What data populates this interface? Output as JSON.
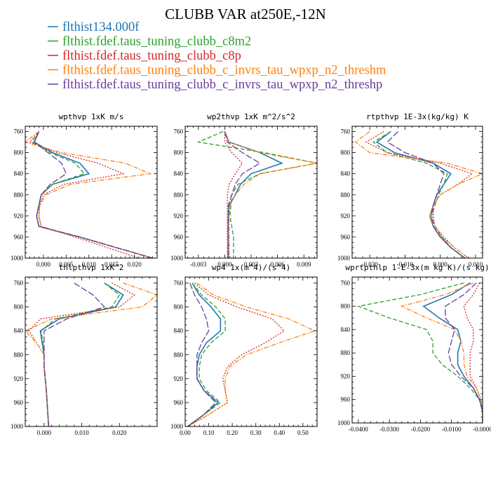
{
  "figure": {
    "title": "CLUBB VAR at250E,-12N"
  },
  "colors": {
    "blue": "#1f77b4",
    "green": "#2ca02c",
    "red": "#d62728",
    "orange": "#ff7f0e",
    "purple": "#6a3d9a"
  },
  "legend": [
    {
      "label": "flthist134.000f",
      "color": "#1f77b4",
      "dash": "solid"
    },
    {
      "label": "flthist.fdef.taus_tuning_clubb_c8m2",
      "color": "#2ca02c",
      "dash": "dashed"
    },
    {
      "label": "flthist.fdef.taus_tuning_clubb_c8p",
      "color": "#d62728",
      "dash": "dotted"
    },
    {
      "label": "flthist.fdef.taus_tuning_clubb_c_invrs_tau_wpxp_n2_threshm",
      "color": "#ff7f0e",
      "dash": "dashdot"
    },
    {
      "label": "flthist.fdef.taus_tuning_clubb_c_invrs_tau_wpxp_n2_threshp",
      "color": "#6a3d9a",
      "dash": "longdash"
    }
  ],
  "chart_data": [
    {
      "type": "line",
      "title": "wpthvp  1xK m/s",
      "xlim": [
        -0.004,
        0.025
      ],
      "ylim": [
        1000,
        750
      ],
      "xticks": [
        0.0,
        0.005,
        0.01,
        0.015,
        0.02
      ],
      "xtick_labels": [
        "0.000",
        "0.005",
        "0.010",
        "0.015",
        "0.020"
      ],
      "yticks": [
        760,
        800,
        840,
        880,
        920,
        960,
        1000
      ],
      "y": [
        760,
        780,
        800,
        820,
        840,
        860,
        880,
        900,
        920,
        940,
        960,
        980,
        1000
      ],
      "series": [
        {
          "name": "flthist134.000f",
          "values": [
            -0.001,
            -0.002,
            0.002,
            0.008,
            0.01,
            0.002,
            -0.0005,
            -0.001,
            -0.0015,
            -0.001,
            0.008,
            0.016,
            0.024
          ]
        },
        {
          "name": "flthist.fdef.taus_tuning_clubb_c8m2",
          "values": [
            -0.001,
            -0.0025,
            0.0015,
            0.007,
            0.009,
            0.002,
            -0.0005,
            -0.001,
            -0.0015,
            -0.001,
            0.008,
            0.016,
            0.024
          ]
        },
        {
          "name": "flthist.fdef.taus_tuning_clubb_c8p",
          "values": [
            -0.001,
            -0.003,
            0.003,
            0.012,
            0.0175,
            0.0045,
            0.0,
            -0.0008,
            -0.001,
            -0.0005,
            0.007,
            0.014,
            0.021
          ]
        },
        {
          "name": "flthist.fdef.taus_tuning_clubb_c_invrs_tau_wpxp_n2_threshm",
          "values": [
            -0.001,
            -0.004,
            0.004,
            0.018,
            0.0235,
            0.006,
            0.0005,
            -0.0008,
            -0.001,
            -0.0005,
            0.008,
            0.016,
            0.024
          ]
        },
        {
          "name": "flthist.fdef.taus_tuning_clubb_c_invrs_tau_wpxp_n2_threshp",
          "values": [
            -0.001,
            -0.002,
            0.001,
            0.004,
            0.005,
            0.0015,
            -0.0005,
            -0.001,
            -0.0015,
            -0.001,
            0.008,
            0.016,
            0.024
          ]
        }
      ]
    },
    {
      "type": "line",
      "title": "wp2thvp  1xK m^2/s^2",
      "xlim": [
        -0.0045,
        0.0105
      ],
      "ylim": [
        1000,
        750
      ],
      "xticks": [
        -0.003,
        0.0,
        0.003,
        0.006,
        0.009
      ],
      "xtick_labels": [
        "-0.003",
        "0.000",
        "0.003",
        "0.006",
        "0.009"
      ],
      "yticks": [
        760,
        800,
        840,
        880,
        920,
        960,
        1000
      ],
      "y": [
        760,
        780,
        800,
        820,
        840,
        860,
        880,
        900,
        920,
        940,
        960,
        980,
        1000
      ],
      "series": [
        {
          "name": "flthist134.000f",
          "values": [
            0.0,
            0.0005,
            0.004,
            0.0065,
            0.003,
            0.0018,
            0.0012,
            0.0005,
            0.0004,
            0.0004,
            0.0004,
            0.0004,
            0.0004
          ]
        },
        {
          "name": "flthist.fdef.taus_tuning_clubb_c8m2",
          "values": [
            -0.0002,
            -0.003,
            0.0045,
            0.0105,
            0.004,
            0.0015,
            0.0008,
            0.0007,
            0.0006,
            0.0008,
            0.001,
            0.001,
            0.001
          ]
        },
        {
          "name": "flthist.fdef.taus_tuning_clubb_c8p",
          "values": [
            0.0,
            0.0,
            0.0008,
            0.002,
            0.0012,
            0.0005,
            0.0003,
            0.0003,
            0.0003,
            0.0003,
            0.0003,
            0.0003,
            0.0003
          ]
        },
        {
          "name": "flthist.fdef.taus_tuning_clubb_c_invrs_tau_wpxp_n2_threshm",
          "values": [
            0.0,
            0.0005,
            0.004,
            0.0105,
            0.004,
            0.0022,
            0.0012,
            0.0006,
            0.0005,
            0.0005,
            0.0005,
            0.0005,
            0.0005
          ]
        },
        {
          "name": "flthist.fdef.taus_tuning_clubb_c_invrs_tau_wpxp_n2_threshp",
          "values": [
            0.0,
            0.0003,
            0.002,
            0.004,
            0.002,
            0.0012,
            0.0008,
            0.0004,
            0.0004,
            0.0004,
            0.0004,
            0.0004,
            0.0004
          ]
        }
      ]
    },
    {
      "type": "line",
      "title": "rtpthvp  1E-3x(kg/kg) K",
      "xlim": [
        -0.025,
        0.012
      ],
      "ylim": [
        1000,
        750
      ],
      "xticks": [
        -0.02,
        -0.01,
        0.0,
        0.01
      ],
      "xtick_labels": [
        "-0.020",
        "-0.010",
        "0.000",
        "0.010"
      ],
      "yticks": [
        760,
        800,
        840,
        880,
        920,
        960,
        1000
      ],
      "y": [
        760,
        780,
        800,
        820,
        840,
        860,
        880,
        900,
        920,
        940,
        960,
        980,
        1000
      ],
      "series": [
        {
          "name": "flthist134.000f",
          "values": [
            -0.014,
            -0.018,
            -0.013,
            -0.002,
            0.003,
            0.001,
            -0.001,
            -0.002,
            -0.003,
            -0.002,
            0.0,
            0.003,
            0.007
          ]
        },
        {
          "name": "flthist.fdef.taus_tuning_clubb_c8m2",
          "values": [
            -0.014,
            -0.019,
            -0.015,
            -0.004,
            0.002,
            0.001,
            -0.0005,
            -0.0015,
            -0.0025,
            -0.0015,
            0.0005,
            0.003,
            0.007
          ]
        },
        {
          "name": "flthist.fdef.taus_tuning_clubb_c8p",
          "values": [
            -0.016,
            -0.021,
            -0.015,
            0.0,
            0.009,
            0.005,
            0.0,
            -0.002,
            -0.002,
            -0.0015,
            0.001,
            0.004,
            0.008
          ]
        },
        {
          "name": "flthist.fdef.taus_tuning_clubb_c_invrs_tau_wpxp_n2_threshm",
          "values": [
            -0.02,
            -0.024,
            -0.02,
            0.002,
            0.012,
            0.005,
            0.0,
            -0.002,
            -0.003,
            -0.002,
            0.0005,
            0.004,
            0.008
          ]
        },
        {
          "name": "flthist.fdef.taus_tuning_clubb_c_invrs_tau_wpxp_n2_threshp",
          "values": [
            -0.012,
            -0.015,
            -0.01,
            -0.002,
            0.001,
            0.0,
            -0.001,
            -0.002,
            -0.0025,
            -0.002,
            0.0,
            0.003,
            0.007
          ]
        }
      ]
    },
    {
      "type": "line",
      "title": "thlpthvp  1xK^2",
      "xlim": [
        -0.005,
        0.03
      ],
      "ylim": [
        1000,
        750
      ],
      "xticks": [
        0.0,
        0.01,
        0.02
      ],
      "xtick_labels": [
        "0.000",
        "0.010",
        "0.020"
      ],
      "yticks": [
        760,
        800,
        840,
        880,
        920,
        960,
        1000
      ],
      "y": [
        760,
        780,
        800,
        820,
        840,
        860,
        880,
        900,
        920,
        940,
        960,
        980,
        1000
      ],
      "series": [
        {
          "name": "flthist134.000f",
          "values": [
            0.016,
            0.021,
            0.019,
            0.004,
            -0.001,
            -0.0005,
            0.0,
            0.0,
            0.0003,
            0.0006,
            0.0008,
            0.001,
            0.0012
          ]
        },
        {
          "name": "flthist.fdef.taus_tuning_clubb_c8m2",
          "values": [
            0.016,
            0.02,
            0.018,
            0.003,
            -0.0008,
            -0.0003,
            0.0,
            0.0,
            0.0003,
            0.0006,
            0.0008,
            0.001,
            0.0012
          ]
        },
        {
          "name": "flthist.fdef.taus_tuning_clubb_c8p",
          "values": [
            0.018,
            0.024,
            0.02,
            -0.001,
            -0.004,
            -0.002,
            0.0,
            0.0,
            0.0003,
            0.0006,
            0.0008,
            0.001,
            0.0012
          ]
        },
        {
          "name": "flthist.fdef.taus_tuning_clubb_c_invrs_tau_wpxp_n2_threshm",
          "values": [
            0.021,
            0.03,
            0.026,
            0.002,
            -0.005,
            -0.002,
            0.0,
            0.0,
            0.0003,
            0.0006,
            0.0008,
            0.001,
            0.0012
          ]
        },
        {
          "name": "flthist.fdef.taus_tuning_clubb_c_invrs_tau_wpxp_n2_threshp",
          "values": [
            0.008,
            0.013,
            0.016,
            0.006,
            0.0,
            0.0,
            0.0,
            0.0,
            0.0003,
            0.0006,
            0.0008,
            0.001,
            0.0012
          ]
        }
      ]
    },
    {
      "type": "line",
      "title": "wp4  1x(m^4)/(s^4)",
      "xlim": [
        0.0,
        0.56
      ],
      "ylim": [
        1000,
        750
      ],
      "xticks": [
        0.0,
        0.1,
        0.2,
        0.3,
        0.4,
        0.5
      ],
      "xtick_labels": [
        "0.00",
        "0.10",
        "0.20",
        "0.30",
        "0.40",
        "0.50"
      ],
      "yticks": [
        760,
        800,
        840,
        880,
        920,
        960,
        1000
      ],
      "y": [
        760,
        780,
        800,
        820,
        840,
        860,
        880,
        900,
        920,
        940,
        960,
        980,
        1000
      ],
      "series": [
        {
          "name": "flthist134.000f",
          "values": [
            0.03,
            0.06,
            0.11,
            0.15,
            0.15,
            0.09,
            0.06,
            0.05,
            0.05,
            0.08,
            0.14,
            0.08,
            0.01
          ]
        },
        {
          "name": "flthist.fdef.taus_tuning_clubb_c8m2",
          "values": [
            0.03,
            0.07,
            0.13,
            0.17,
            0.17,
            0.11,
            0.07,
            0.06,
            0.06,
            0.09,
            0.15,
            0.08,
            0.01
          ]
        },
        {
          "name": "flthist.fdef.taus_tuning_clubb_c8p",
          "values": [
            0.04,
            0.1,
            0.22,
            0.37,
            0.42,
            0.34,
            0.24,
            0.18,
            0.16,
            0.17,
            0.18,
            0.1,
            0.01
          ]
        },
        {
          "name": "flthist.fdef.taus_tuning_clubb_c_invrs_tau_wpxp_n2_threshm",
          "values": [
            0.05,
            0.12,
            0.26,
            0.44,
            0.55,
            0.4,
            0.26,
            0.19,
            0.17,
            0.17,
            0.18,
            0.1,
            0.01
          ]
        },
        {
          "name": "flthist.fdef.taus_tuning_clubb_c_invrs_tau_wpxp_n2_threshp",
          "values": [
            0.02,
            0.04,
            0.07,
            0.09,
            0.1,
            0.07,
            0.05,
            0.05,
            0.05,
            0.08,
            0.13,
            0.08,
            0.01
          ]
        }
      ]
    },
    {
      "type": "line",
      "title": "wprtpthlp  1-E-3x(m kg K)/(s kg)",
      "xlim": [
        -0.042,
        0.0
      ],
      "ylim": [
        1000,
        750
      ],
      "xticks": [
        -0.04,
        -0.03,
        -0.02,
        -0.01,
        0.0
      ],
      "xtick_labels": [
        "-0.0400",
        "-0.0300",
        "-0.0200",
        "-0.0100",
        "-0.0000"
      ],
      "yticks": [
        760,
        800,
        840,
        880,
        920,
        960,
        1000
      ],
      "y": [
        760,
        780,
        800,
        820,
        840,
        860,
        880,
        900,
        920,
        940,
        960,
        980,
        1000
      ],
      "series": [
        {
          "name": "flthist134.000f",
          "values": [
            -0.004,
            -0.01,
            -0.019,
            -0.014,
            -0.008,
            -0.007,
            -0.008,
            -0.008,
            -0.006,
            -0.003,
            -0.001,
            0.0,
            0.0
          ]
        },
        {
          "name": "flthist.fdef.taus_tuning_clubb_c8m2",
          "values": [
            -0.006,
            -0.02,
            -0.04,
            -0.03,
            -0.018,
            -0.016,
            -0.016,
            -0.013,
            -0.008,
            -0.004,
            -0.001,
            0.0,
            0.0
          ]
        },
        {
          "name": "flthist.fdef.taus_tuning_clubb_c8p",
          "values": [
            -0.001,
            -0.003,
            -0.006,
            -0.005,
            -0.003,
            -0.003,
            -0.004,
            -0.004,
            -0.004,
            -0.002,
            -0.0005,
            0.0,
            0.0
          ]
        },
        {
          "name": "flthist.fdef.taus_tuning_clubb_c_invrs_tau_wpxp_n2_threshm",
          "values": [
            -0.003,
            -0.012,
            -0.026,
            -0.018,
            -0.009,
            -0.007,
            -0.006,
            -0.006,
            -0.005,
            -0.002,
            -0.0005,
            0.0,
            0.0
          ]
        },
        {
          "name": "flthist.fdef.taus_tuning_clubb_c_invrs_tau_wpxp_n2_threshp",
          "values": [
            -0.002,
            -0.006,
            -0.012,
            -0.012,
            -0.009,
            -0.01,
            -0.011,
            -0.01,
            -0.007,
            -0.003,
            -0.001,
            0.0,
            0.0
          ]
        }
      ]
    }
  ]
}
